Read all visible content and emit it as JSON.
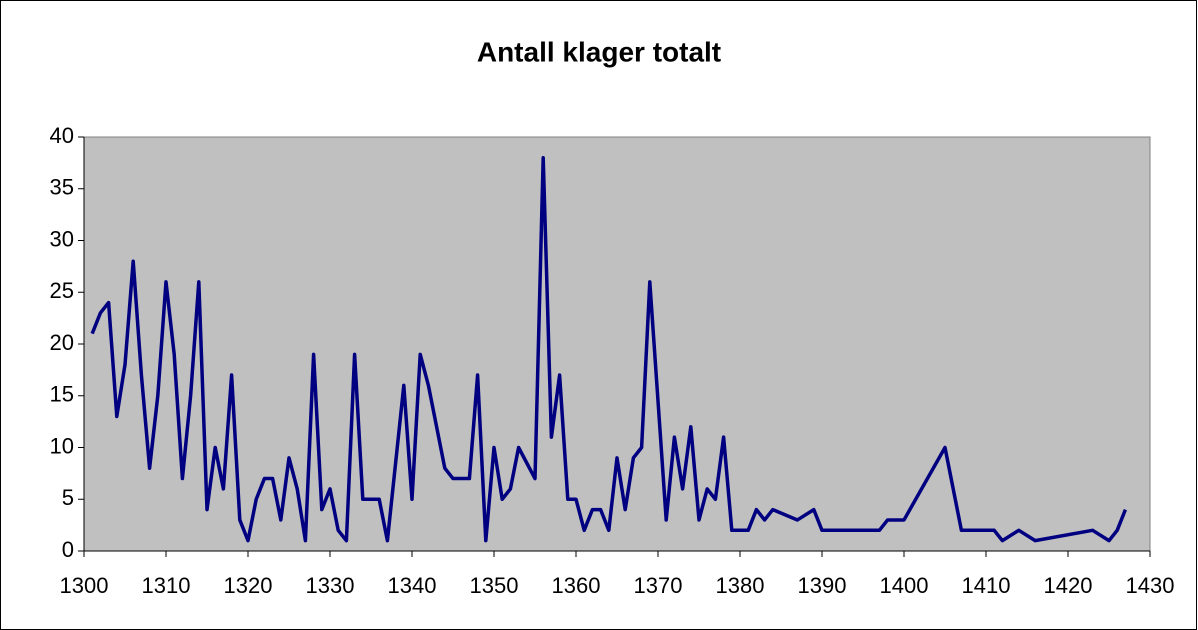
{
  "chart_data": {
    "type": "line",
    "title": "Antall klager totalt",
    "x": [
      1301,
      1302,
      1303,
      1304,
      1305,
      1306,
      1307,
      1308,
      1309,
      1310,
      1311,
      1312,
      1313,
      1314,
      1315,
      1316,
      1317,
      1318,
      1319,
      1320,
      1321,
      1322,
      1323,
      1324,
      1325,
      1326,
      1327,
      1328,
      1329,
      1330,
      1331,
      1332,
      1333,
      1334,
      1335,
      1336,
      1337,
      1339,
      1340,
      1341,
      1342,
      1344,
      1345,
      1346,
      1347,
      1348,
      1349,
      1350,
      1351,
      1352,
      1353,
      1355,
      1356,
      1357,
      1358,
      1359,
      1360,
      1361,
      1362,
      1363,
      1364,
      1365,
      1366,
      1367,
      1368,
      1369,
      1371,
      1372,
      1373,
      1374,
      1375,
      1376,
      1377,
      1378,
      1379,
      1381,
      1382,
      1383,
      1384,
      1387,
      1389,
      1390,
      1397,
      1398,
      1400,
      1405,
      1407,
      1411,
      1412,
      1414,
      1416,
      1423,
      1425,
      1426,
      1427
    ],
    "series": [
      {
        "name": "Antall klager",
        "color": "#000080",
        "values": [
          21,
          23,
          24,
          13,
          18,
          28,
          17,
          8,
          15,
          26,
          19,
          7,
          15,
          26,
          4,
          10,
          6,
          17,
          3,
          1,
          5,
          7,
          7,
          3,
          9,
          6,
          1,
          19,
          4,
          6,
          2,
          1,
          19,
          5,
          5,
          5,
          1,
          16,
          5,
          19,
          16,
          8,
          7,
          7,
          7,
          17,
          1,
          10,
          5,
          6,
          10,
          7,
          38,
          11,
          17,
          5,
          5,
          2,
          4,
          4,
          2,
          9,
          4,
          9,
          10,
          26,
          3,
          11,
          6,
          12,
          3,
          6,
          5,
          11,
          2,
          2,
          4,
          3,
          4,
          3,
          4,
          2,
          2,
          3,
          3,
          10,
          2,
          2,
          1,
          2,
          1,
          2,
          1,
          2,
          4
        ]
      }
    ],
    "xlim": [
      1300,
      1430
    ],
    "xticks": [
      1300,
      1310,
      1320,
      1330,
      1340,
      1350,
      1360,
      1370,
      1380,
      1390,
      1400,
      1410,
      1420,
      1430
    ],
    "ylim": [
      0,
      40
    ],
    "yticks": [
      0,
      5,
      10,
      15,
      20,
      25,
      30,
      35,
      40
    ],
    "grid": false
  }
}
